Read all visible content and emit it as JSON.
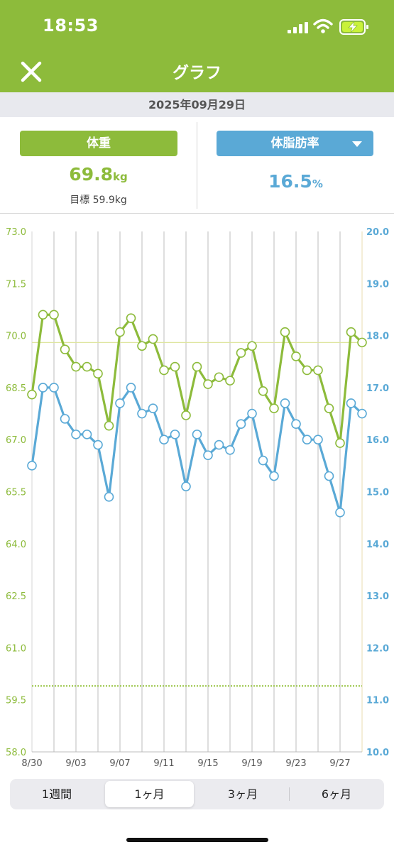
{
  "status": {
    "time": "18:53"
  },
  "nav": {
    "title": "グラフ",
    "close_icon": "close-icon"
  },
  "date": "2025年09月29日",
  "weight": {
    "label": "体重",
    "value": "69.8",
    "unit": "kg",
    "target": "目標 59.9kg"
  },
  "fat": {
    "label": "体脂肪率",
    "value": "16.5",
    "unit": "%"
  },
  "colors": {
    "green": "#8dbb3b",
    "blue": "#5aa9d6"
  },
  "chart_data": {
    "type": "line",
    "x": [
      "8/30",
      "8/31",
      "9/01",
      "9/02",
      "9/03",
      "9/04",
      "9/05",
      "9/06",
      "9/07",
      "9/08",
      "9/09",
      "9/10",
      "9/11",
      "9/12",
      "9/13",
      "9/14",
      "9/15",
      "9/16",
      "9/17",
      "9/18",
      "9/19",
      "9/20",
      "9/21",
      "9/22",
      "9/23",
      "9/24",
      "9/25",
      "9/26",
      "9/27",
      "9/28",
      "9/29"
    ],
    "x_tick_labels": [
      "8/30",
      "9/03",
      "9/07",
      "9/11",
      "9/15",
      "9/19",
      "9/23",
      "9/27"
    ],
    "series": [
      {
        "name": "体重",
        "axis": "left",
        "color": "#8dbb3b",
        "values": [
          68.3,
          70.6,
          70.6,
          69.6,
          69.1,
          69.1,
          68.9,
          67.4,
          70.1,
          70.5,
          69.7,
          69.9,
          69.0,
          69.1,
          67.7,
          69.1,
          68.6,
          68.8,
          68.7,
          69.5,
          69.7,
          68.4,
          67.9,
          70.1,
          69.4,
          69.0,
          69.0,
          67.9,
          66.9,
          70.1,
          69.8
        ]
      },
      {
        "name": "体脂肪率",
        "axis": "right",
        "color": "#5aa9d6",
        "values": [
          15.5,
          17.0,
          17.0,
          16.4,
          16.1,
          16.1,
          15.9,
          14.9,
          16.7,
          17.0,
          16.5,
          16.6,
          16.0,
          16.1,
          15.1,
          16.1,
          15.7,
          15.9,
          15.8,
          16.3,
          16.5,
          15.6,
          15.3,
          16.7,
          16.3,
          16.0,
          16.0,
          15.3,
          14.6,
          16.7,
          16.5
        ]
      }
    ],
    "left_axis": {
      "ylim": [
        58.0,
        73.0
      ],
      "ticks": [
        "58.0",
        "59.5",
        "61.0",
        "62.5",
        "64.0",
        "65.5",
        "67.0",
        "68.5",
        "70.0",
        "71.5",
        "73.0"
      ],
      "color": "#8dbb3b"
    },
    "right_axis": {
      "ylim": [
        10.0,
        20.0
      ],
      "ticks": [
        "10.0",
        "11.0",
        "12.0",
        "13.0",
        "14.0",
        "15.0",
        "16.0",
        "17.0",
        "18.0",
        "19.0",
        "20.0"
      ],
      "color": "#5aa9d6"
    },
    "target_line": 59.9,
    "current_line": 69.8
  },
  "tabs": [
    {
      "label": "1週間",
      "active": false
    },
    {
      "label": "1ヶ月",
      "active": true
    },
    {
      "label": "3ヶ月",
      "active": false
    },
    {
      "label": "6ヶ月",
      "active": false
    }
  ]
}
